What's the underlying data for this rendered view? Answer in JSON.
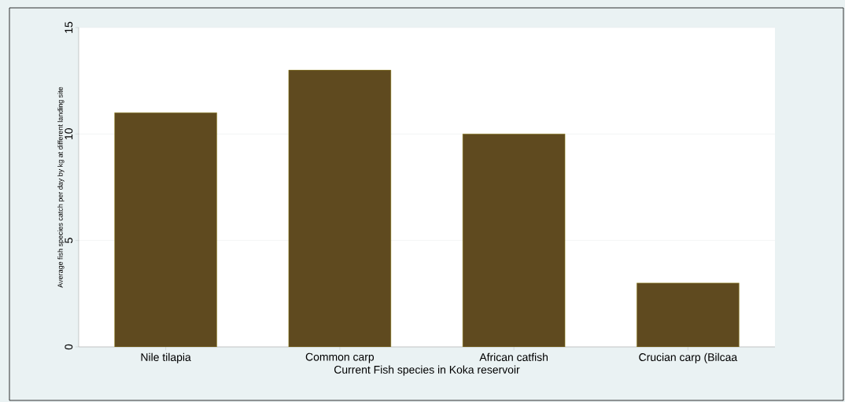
{
  "chart_data": {
    "type": "bar",
    "xlabel": "Current Fish species in Koka reservoir",
    "ylabel": "Average fish species catch per day by kg at different landing site",
    "categories": [
      "Nile tilapia",
      "Common carp",
      "African catfish",
      "Crucian carp (Bilcaa"
    ],
    "values": [
      11,
      13,
      10,
      3
    ],
    "color": "#5f4a1f",
    "ylim": [
      0,
      15
    ],
    "yticks": [
      0,
      5,
      10,
      15
    ],
    "grid": "y"
  }
}
